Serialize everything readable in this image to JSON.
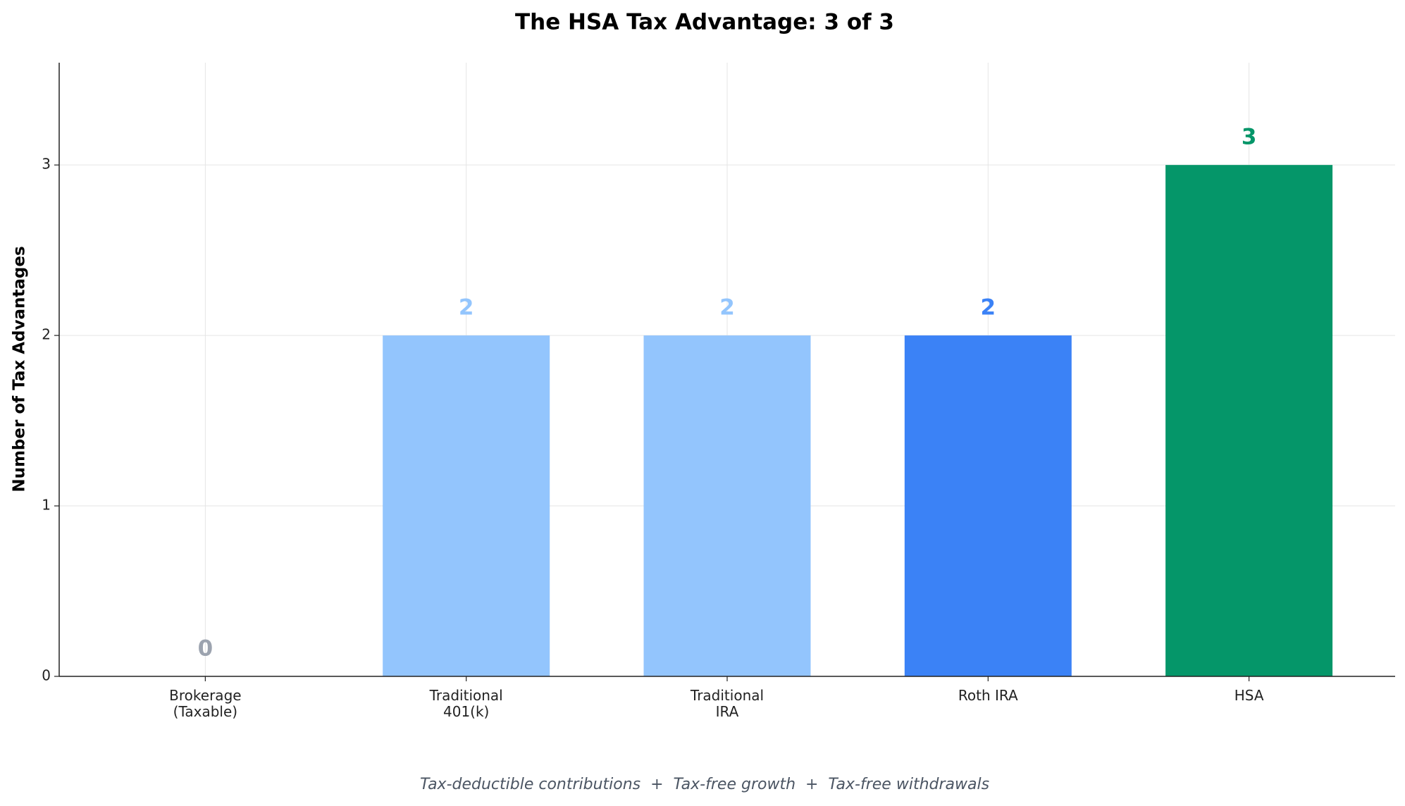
{
  "chart_data": {
    "type": "bar",
    "title": "The HSA Tax Advantage: 3 of 3",
    "ylabel": "Number of Tax Advantages",
    "categories": [
      "Brokerage\n(Taxable)",
      "Traditional\n401(k)",
      "Traditional\nIRA",
      "Roth IRA",
      "HSA"
    ],
    "values": [
      0,
      2,
      2,
      2,
      3
    ],
    "colors": [
      "#9ca3af",
      "#93c5fd",
      "#93c5fd",
      "#3b82f6",
      "#059669"
    ],
    "ylim": [
      0,
      3.6
    ],
    "yticks": [
      0,
      1,
      2,
      3
    ],
    "grid": true,
    "footnote": "Tax-deductible contributions  +  Tax-free growth  +  Tax-free withdrawals"
  }
}
